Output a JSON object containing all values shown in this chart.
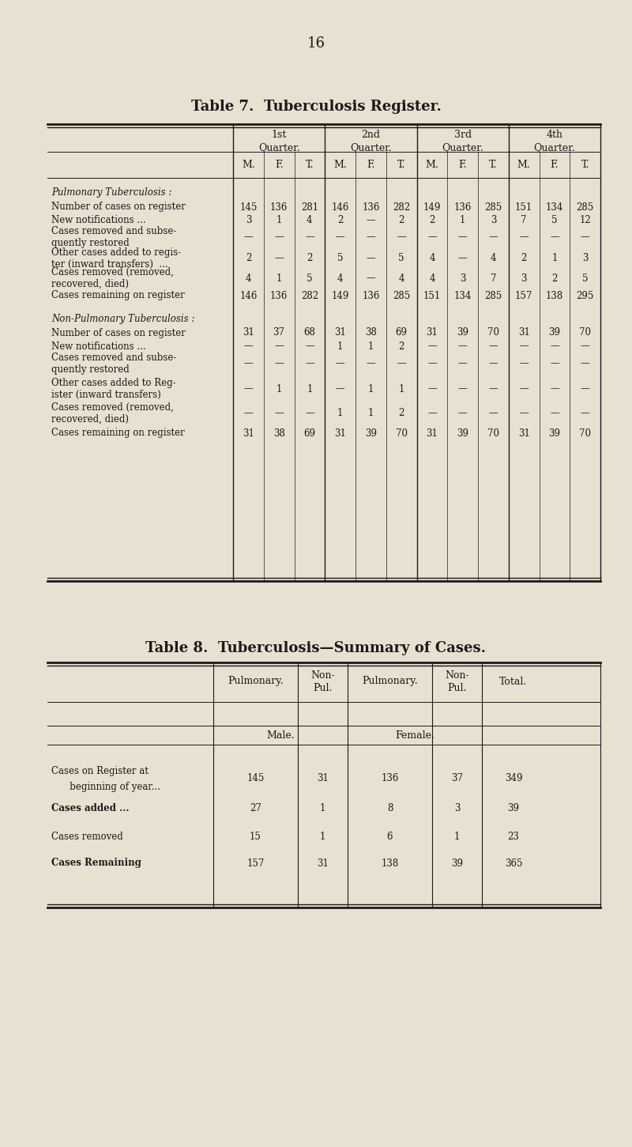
{
  "page_number": "16",
  "bg_color": "#e8e0d0",
  "table7_title": "Table 7.  Tuberculosis Register.",
  "table8_title": "Table 8.  Tuberculosis—Summary of Cases.",
  "table7_data": [
    [
      "",
      "",
      "",
      "",
      "",
      "",
      "",
      "",
      "",
      "",
      "",
      ""
    ],
    [
      "145",
      "136",
      "281",
      "146",
      "136",
      "282",
      "149",
      "136",
      "285",
      "151",
      "134",
      "285"
    ],
    [
      "3",
      "1",
      "4",
      "2",
      "—",
      "2",
      "2",
      "1",
      "3",
      "7",
      "5",
      "12"
    ],
    [
      "—",
      "—",
      "—",
      "—",
      "—",
      "—",
      "—",
      "—",
      "—",
      "—",
      "—",
      "—"
    ],
    [
      "2",
      "—",
      "2",
      "5",
      "—",
      "5",
      "4",
      "—",
      "4",
      "2",
      "1",
      "3"
    ],
    [
      "4",
      "1",
      "5",
      "4",
      "—",
      "4",
      "4",
      "3",
      "7",
      "3",
      "2",
      "5"
    ],
    [
      "146",
      "136",
      "282",
      "149",
      "136",
      "285",
      "151",
      "134",
      "285",
      "157",
      "138",
      "295"
    ],
    [
      "",
      "",
      "",
      "",
      "",
      "",
      "",
      "",
      "",
      "",
      "",
      ""
    ],
    [
      "31",
      "37",
      "68",
      "31",
      "38",
      "69",
      "31",
      "39",
      "70",
      "31",
      "39",
      "70"
    ],
    [
      "—",
      "—",
      "—",
      "1",
      "1",
      "2",
      "—",
      "—",
      "—",
      "—",
      "—",
      "—"
    ],
    [
      "—",
      "—",
      "—",
      "—",
      "—",
      "—",
      "—",
      "—",
      "—",
      "—",
      "—",
      "—"
    ],
    [
      "—",
      "1",
      "1",
      "—",
      "1",
      "1",
      "—",
      "—",
      "—",
      "—",
      "—",
      "—"
    ],
    [
      "—",
      "—",
      "—",
      "1",
      "1",
      "2",
      "—",
      "—",
      "—",
      "—",
      "—",
      "—"
    ],
    [
      "31",
      "38",
      "69",
      "31",
      "39",
      "70",
      "31",
      "39",
      "70",
      "31",
      "39",
      "70"
    ]
  ],
  "table8_data": [
    [
      "145",
      "31",
      "136",
      "37",
      "349"
    ],
    [
      "27",
      "1",
      "8",
      "3",
      "39"
    ],
    [
      "15",
      "1",
      "6",
      "1",
      "23"
    ],
    [
      "157",
      "31",
      "138",
      "39",
      "365"
    ]
  ]
}
